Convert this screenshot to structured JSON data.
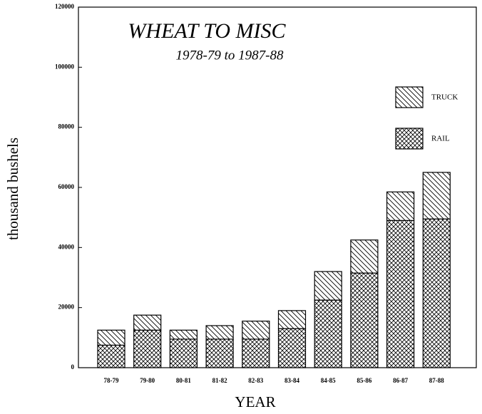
{
  "chart_data": {
    "type": "stacked_bar",
    "title": "WHEAT TO MISC",
    "subtitle": "1978-79 to 1987-88",
    "x_label": "YEAR",
    "y_label": "thousand bushels",
    "categories": [
      "78-79",
      "79-80",
      "80-81",
      "81-82",
      "82-83",
      "83-84",
      "84-85",
      "85-86",
      "86-87",
      "87-88"
    ],
    "series": [
      {
        "name": "RAIL",
        "color": "#000000",
        "hatch": "cross",
        "values": [
          7500,
          12500,
          9500,
          9500,
          9500,
          13000,
          22500,
          31500,
          49000,
          49500
        ]
      },
      {
        "name": "TRUCK",
        "color": "#000000",
        "hatch": "diagonal",
        "values": [
          5000,
          5000,
          3000,
          4500,
          6000,
          6000,
          9500,
          11000,
          9500,
          15500
        ]
      }
    ],
    "ylim": [
      0,
      120000
    ],
    "yticks": [
      0,
      20000,
      40000,
      60000,
      80000,
      100000,
      120000
    ],
    "grid": false,
    "legend": "upper right"
  }
}
